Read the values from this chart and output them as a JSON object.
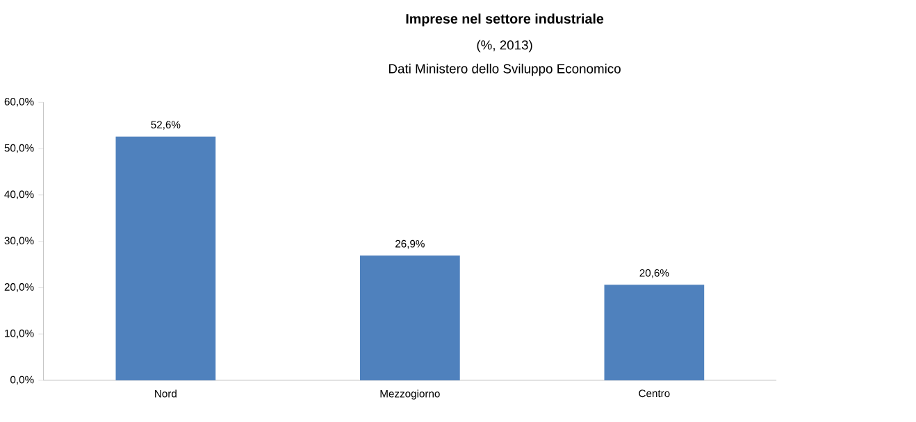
{
  "chart_data": {
    "type": "bar",
    "title": "Imprese nel settore industriale",
    "subtitle": "(%, 2013)",
    "annotations": [
      "Dati Ministero dello Sviluppo Economico"
    ],
    "categories": [
      "Nord",
      "Mezzogiorno",
      "Centro"
    ],
    "values": [
      52.6,
      26.9,
      20.6
    ],
    "value_labels": [
      "52,6%",
      "26,9%",
      "20,6%"
    ],
    "color": "#4f81bd",
    "ylim": [
      0,
      60
    ],
    "yticks": [
      {
        "value": 0,
        "label": "0,0%"
      },
      {
        "value": 10,
        "label": "10,0%"
      },
      {
        "value": 20,
        "label": "20,0%"
      },
      {
        "value": 30,
        "label": "30,0%"
      },
      {
        "value": 40,
        "label": "40,0%"
      },
      {
        "value": 50,
        "label": "50,0%"
      },
      {
        "value": 60,
        "label": "60,0%"
      }
    ]
  }
}
